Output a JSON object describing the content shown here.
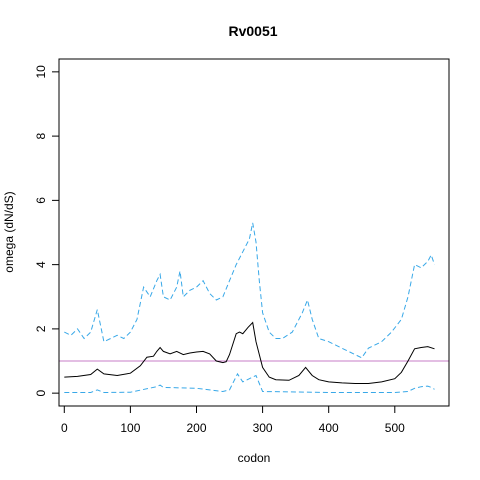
{
  "chart_data": {
    "type": "line",
    "title": "Rv0051",
    "xlabel": "codon",
    "ylabel": "omega (dN/dS)",
    "xlim": [
      -8,
      582
    ],
    "ylim": [
      -0.4,
      10.4
    ],
    "xticks": [
      "0",
      "100",
      "200",
      "300",
      "400",
      "500"
    ],
    "yticks": [
      "0",
      "2",
      "4",
      "6",
      "8",
      "10"
    ],
    "reference_line": {
      "y": 1,
      "color": "#c77cc7"
    },
    "series": [
      {
        "role": "estimate",
        "color": "#000000",
        "dash": "solid",
        "x": [
          0,
          20,
          40,
          50,
          60,
          80,
          100,
          115,
          125,
          135,
          140,
          145,
          150,
          160,
          170,
          180,
          190,
          200,
          210,
          220,
          230,
          240,
          245,
          250,
          260,
          265,
          270,
          278,
          285,
          290,
          300,
          310,
          320,
          340,
          355,
          365,
          375,
          385,
          400,
          420,
          440,
          460,
          480,
          500,
          510,
          520,
          530,
          540,
          550,
          560
        ],
        "y": [
          0.5,
          0.52,
          0.58,
          0.75,
          0.6,
          0.55,
          0.62,
          0.85,
          1.12,
          1.15,
          1.3,
          1.42,
          1.3,
          1.22,
          1.3,
          1.2,
          1.25,
          1.28,
          1.3,
          1.22,
          1.0,
          0.95,
          0.98,
          1.2,
          1.85,
          1.9,
          1.85,
          2.05,
          2.2,
          1.6,
          0.8,
          0.5,
          0.42,
          0.4,
          0.55,
          0.8,
          0.55,
          0.42,
          0.35,
          0.32,
          0.3,
          0.3,
          0.35,
          0.45,
          0.65,
          1.0,
          1.38,
          1.42,
          1.45,
          1.38
        ]
      },
      {
        "role": "upper-bound",
        "color": "#38a8e8",
        "dash": "dashed",
        "x": [
          0,
          10,
          20,
          30,
          40,
          50,
          60,
          70,
          80,
          90,
          100,
          110,
          120,
          130,
          140,
          145,
          150,
          160,
          170,
          175,
          180,
          190,
          200,
          210,
          220,
          230,
          240,
          250,
          260,
          270,
          280,
          285,
          290,
          295,
          300,
          310,
          320,
          330,
          345,
          360,
          368,
          375,
          385,
          400,
          420,
          440,
          450,
          460,
          480,
          495,
          510,
          520,
          530,
          540,
          550,
          555,
          560
        ],
        "y": [
          1.9,
          1.8,
          2.0,
          1.7,
          1.9,
          2.6,
          1.6,
          1.7,
          1.8,
          1.7,
          1.9,
          2.3,
          3.3,
          3.0,
          3.5,
          3.7,
          3.0,
          2.9,
          3.3,
          3.8,
          3.0,
          3.2,
          3.3,
          3.5,
          3.1,
          2.9,
          3.0,
          3.5,
          4.0,
          4.4,
          4.8,
          5.3,
          4.7,
          3.5,
          2.5,
          1.9,
          1.7,
          1.7,
          1.9,
          2.5,
          2.9,
          2.3,
          1.7,
          1.6,
          1.4,
          1.2,
          1.1,
          1.4,
          1.6,
          1.9,
          2.3,
          3.0,
          4.0,
          3.9,
          4.1,
          4.3,
          4.0
        ]
      },
      {
        "role": "lower-bound",
        "color": "#38a8e8",
        "dash": "dashed",
        "x": [
          0,
          40,
          50,
          60,
          100,
          140,
          145,
          150,
          200,
          240,
          250,
          262,
          270,
          280,
          290,
          295,
          300,
          400,
          500,
          520,
          530,
          540,
          550,
          555,
          560
        ],
        "y": [
          0.02,
          0.02,
          0.1,
          0.02,
          0.03,
          0.2,
          0.25,
          0.18,
          0.15,
          0.05,
          0.1,
          0.6,
          0.35,
          0.45,
          0.55,
          0.3,
          0.05,
          0.02,
          0.02,
          0.05,
          0.15,
          0.2,
          0.22,
          0.18,
          0.12
        ]
      }
    ]
  }
}
